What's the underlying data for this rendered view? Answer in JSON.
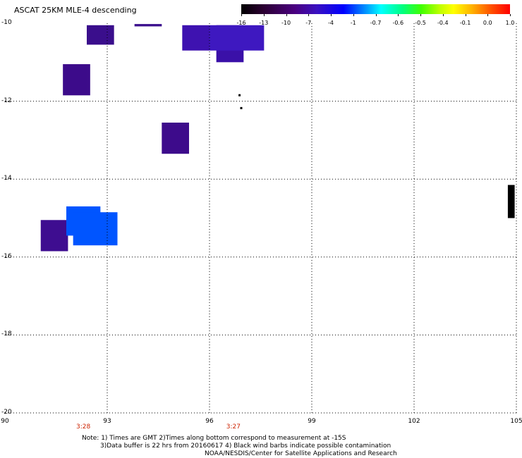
{
  "title": "ASCAT 25KM MLE-4 descending",
  "colorbar": {
    "labels": [
      "-16",
      "-13",
      "-10",
      "-7",
      "-4",
      "-1",
      "-0.7",
      "-0.6",
      "-0.5",
      "-0.4",
      "-0.1",
      "0.0",
      "1.0"
    ],
    "colors": [
      "#000000",
      "#4a0080",
      "#0000ff",
      "#00ffff",
      "#40ff00",
      "#ffff00",
      "#ff0000"
    ]
  },
  "map": {
    "lon_range": [
      90,
      105
    ],
    "lat_range": [
      -20,
      -10
    ],
    "x_ticks": [
      "90",
      "93",
      "96",
      "99",
      "102",
      "105"
    ],
    "y_ticks": [
      "-10",
      "-12",
      "-14",
      "-16",
      "-18",
      "-20"
    ],
    "time_labels": [
      {
        "text": "3:28",
        "lon": 92.3
      },
      {
        "text": "3:27",
        "lon": 96.7
      }
    ],
    "grid": "dotted",
    "cells": [
      {
        "lon": [
          92.4,
          93.2
        ],
        "lat": [
          -10.55,
          -10.05
        ],
        "color": "#3a0e8c"
      },
      {
        "lon": [
          91.7,
          92.5
        ],
        "lat": [
          -11.85,
          -11.05
        ],
        "color": "#3c0b8a"
      },
      {
        "lon": [
          94.6,
          95.4
        ],
        "lat": [
          -13.35,
          -12.55
        ],
        "color": "#3d0b8b"
      },
      {
        "lon": [
          95.2,
          96.0
        ],
        "lat": [
          -10.7,
          -10.05
        ],
        "color": "#3e12b0"
      },
      {
        "lon": [
          96.2,
          97.0
        ],
        "lat": [
          -11.0,
          -10.05
        ],
        "color": "#3a10a8"
      },
      {
        "lon": [
          96.0,
          97.6
        ],
        "lat": [
          -10.7,
          -10.05
        ],
        "color": "#3e18c0"
      },
      {
        "lon": [
          93.8,
          94.6
        ],
        "lat": [
          -10.08,
          -10.02
        ],
        "color": "#3a0e8c"
      },
      {
        "lon": [
          91.05,
          91.85
        ],
        "lat": [
          -15.85,
          -15.05
        ],
        "color": "#3e0d90"
      },
      {
        "lon": [
          91.8,
          92.8
        ],
        "lat": [
          -15.45,
          -14.7
        ],
        "color": "#0055ff"
      },
      {
        "lon": [
          92.0,
          93.3
        ],
        "lat": [
          -15.7,
          -14.85
        ],
        "color": "#0055ff"
      },
      {
        "lon": [
          104.75,
          104.95
        ],
        "lat": [
          -15.0,
          -14.15
        ],
        "color": "#000000"
      }
    ]
  },
  "notes": [
    "Note: 1) Times are GMT 2)Times along bottom correspond to measurement at -15S",
    "3)Data buffer is 22 hrs from 20160617 4) Black wind barbs indicate possible contamination",
    "NOAA/NESDIS/Center for Satellite Applications and Research"
  ]
}
